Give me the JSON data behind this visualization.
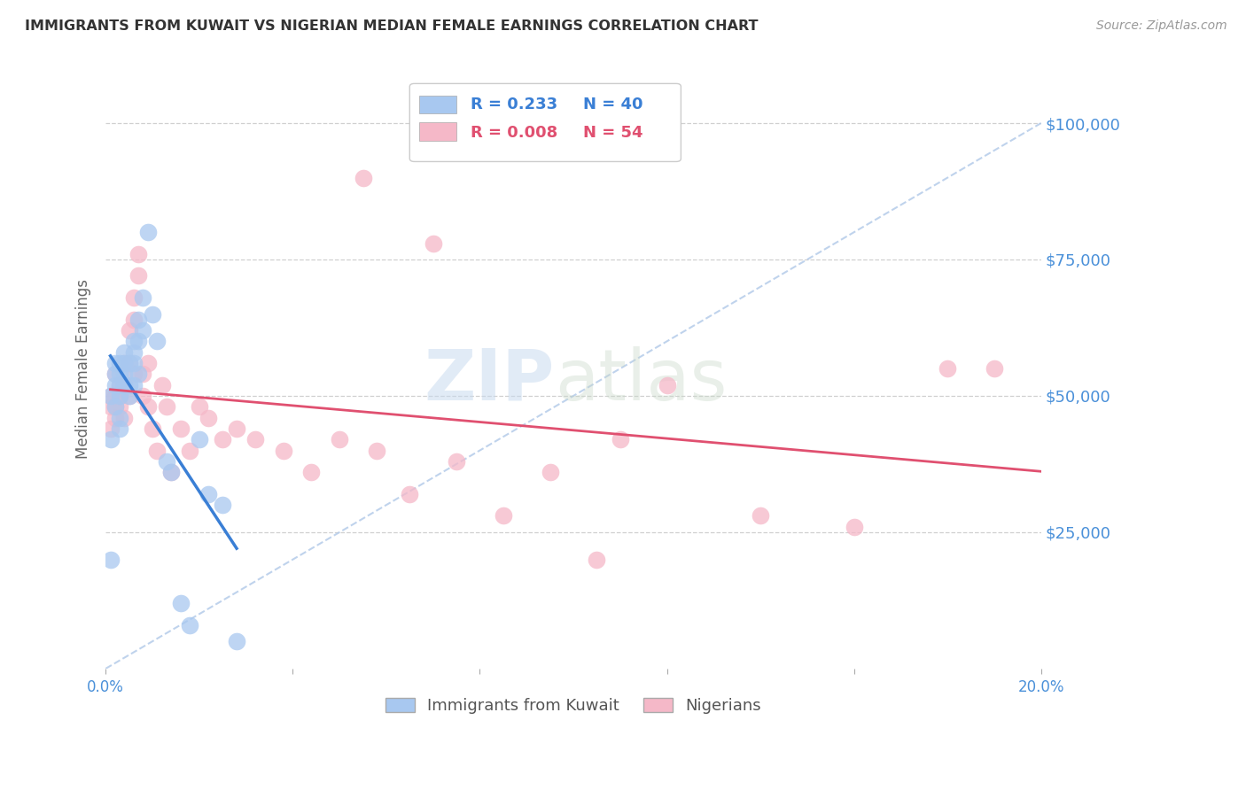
{
  "title": "IMMIGRANTS FROM KUWAIT VS NIGERIAN MEDIAN FEMALE EARNINGS CORRELATION CHART",
  "source": "Source: ZipAtlas.com",
  "ylabel": "Median Female Earnings",
  "xlim": [
    0.0,
    0.2
  ],
  "ylim": [
    0,
    110000
  ],
  "yticks": [
    25000,
    50000,
    75000,
    100000
  ],
  "ytick_labels": [
    "$25,000",
    "$50,000",
    "$75,000",
    "$100,000"
  ],
  "xticks": [
    0.0,
    0.04,
    0.08,
    0.12,
    0.16,
    0.2
  ],
  "xtick_labels": [
    "0.0%",
    "",
    "",
    "",
    "",
    "20.0%"
  ],
  "R_kuwait": 0.233,
  "N_kuwait": 40,
  "R_nigeria": 0.008,
  "N_nigeria": 54,
  "watermark_zip": "ZIP",
  "watermark_atlas": "atlas",
  "background_color": "#ffffff",
  "grid_color": "#d0d0d0",
  "title_color": "#333333",
  "right_label_color": "#4a90d9",
  "kuwait_color": "#a8c8f0",
  "nigeria_color": "#f5b8c8",
  "kuwait_line_color": "#3a7fd5",
  "nigeria_line_color": "#e05070",
  "diagonal_line_color": "#b0c8e8",
  "kuwait_points_x": [
    0.001,
    0.001,
    0.001,
    0.002,
    0.002,
    0.002,
    0.002,
    0.003,
    0.003,
    0.003,
    0.003,
    0.003,
    0.003,
    0.004,
    0.004,
    0.004,
    0.004,
    0.005,
    0.005,
    0.005,
    0.006,
    0.006,
    0.006,
    0.006,
    0.007,
    0.007,
    0.007,
    0.008,
    0.008,
    0.009,
    0.01,
    0.011,
    0.013,
    0.014,
    0.016,
    0.018,
    0.02,
    0.022,
    0.025,
    0.028
  ],
  "kuwait_points_y": [
    20000,
    42000,
    50000,
    48000,
    52000,
    54000,
    56000,
    50000,
    52000,
    54000,
    56000,
    46000,
    44000,
    54000,
    56000,
    58000,
    52000,
    56000,
    52000,
    50000,
    58000,
    60000,
    56000,
    52000,
    64000,
    60000,
    54000,
    68000,
    62000,
    80000,
    65000,
    60000,
    38000,
    36000,
    12000,
    8000,
    42000,
    32000,
    30000,
    5000
  ],
  "nigeria_points_x": [
    0.001,
    0.001,
    0.001,
    0.002,
    0.002,
    0.002,
    0.002,
    0.003,
    0.003,
    0.003,
    0.004,
    0.004,
    0.004,
    0.005,
    0.005,
    0.005,
    0.006,
    0.006,
    0.006,
    0.007,
    0.007,
    0.008,
    0.008,
    0.009,
    0.009,
    0.01,
    0.011,
    0.012,
    0.013,
    0.014,
    0.016,
    0.018,
    0.02,
    0.022,
    0.025,
    0.028,
    0.032,
    0.038,
    0.044,
    0.05,
    0.058,
    0.065,
    0.075,
    0.085,
    0.095,
    0.105,
    0.12,
    0.14,
    0.16,
    0.18,
    0.055,
    0.07,
    0.11,
    0.19
  ],
  "nigeria_points_y": [
    48000,
    44000,
    50000,
    50000,
    54000,
    46000,
    48000,
    50000,
    48000,
    52000,
    52000,
    56000,
    46000,
    62000,
    56000,
    50000,
    68000,
    64000,
    54000,
    76000,
    72000,
    54000,
    50000,
    56000,
    48000,
    44000,
    40000,
    52000,
    48000,
    36000,
    44000,
    40000,
    48000,
    46000,
    42000,
    44000,
    42000,
    40000,
    36000,
    42000,
    40000,
    32000,
    38000,
    28000,
    36000,
    20000,
    52000,
    28000,
    26000,
    55000,
    90000,
    78000,
    42000,
    55000
  ]
}
